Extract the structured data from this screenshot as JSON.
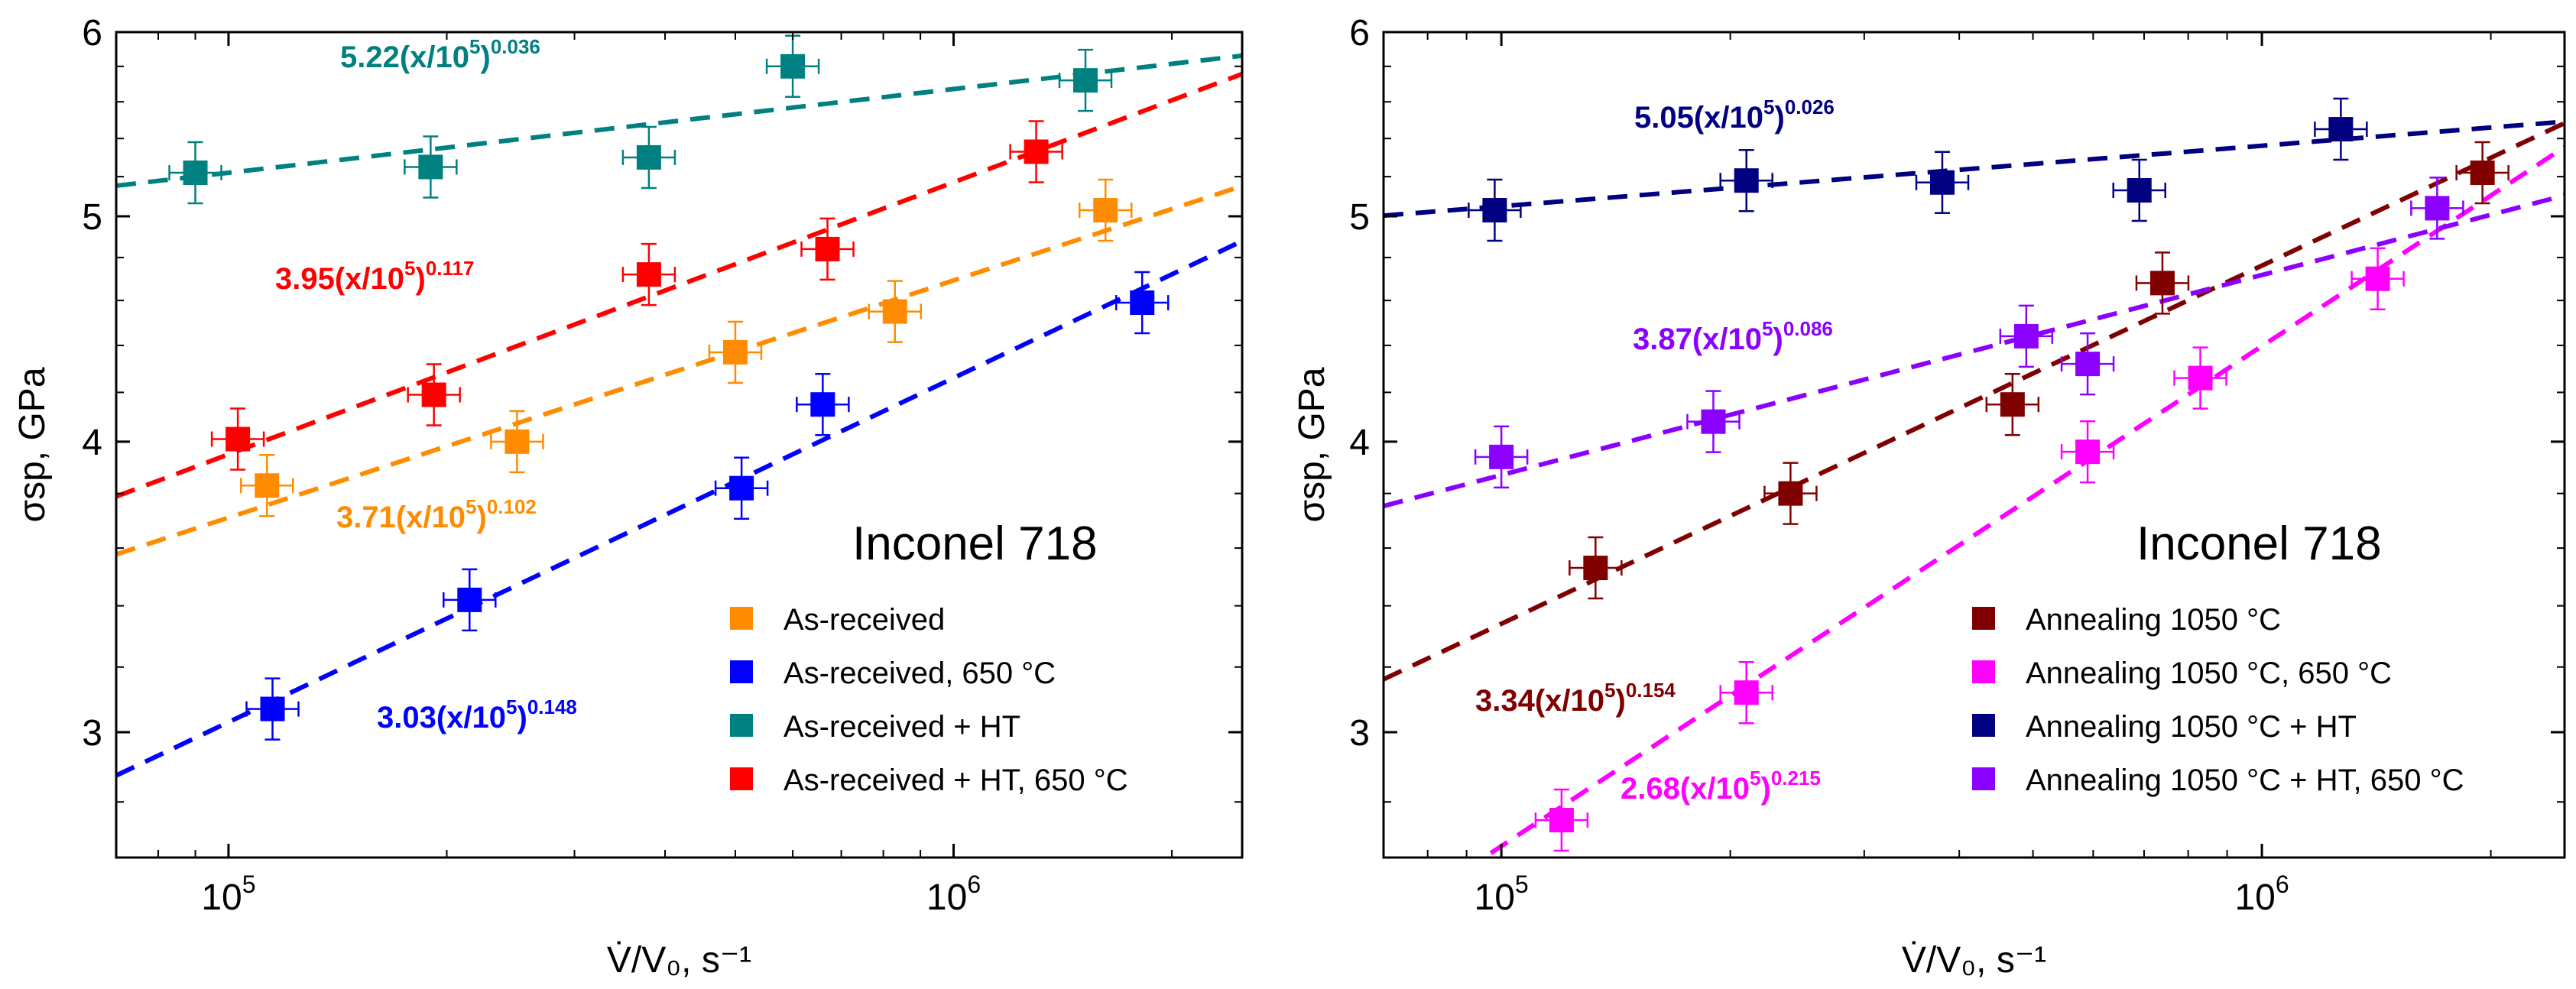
{
  "chart_data": [
    {
      "type": "scatter",
      "title": "Inconel 718",
      "xlabel": "V̇/V₀, s⁻¹",
      "ylabel": "σsp, GPa",
      "xscale": "log",
      "yscale": "log",
      "xlim": [
        70000,
        2500000
      ],
      "ylim": [
        2.65,
        6.0
      ],
      "x_ticks": [
        100000,
        1000000
      ],
      "x_tick_labels": [
        [
          "10",
          "5"
        ],
        [
          "10",
          "6"
        ]
      ],
      "y_ticks": [
        3,
        4,
        5,
        6
      ],
      "y_tick_labels": [
        "3",
        "4",
        "5",
        "6"
      ],
      "legend_position": "bottom-right",
      "series": [
        {
          "name": "As-received",
          "color": "#ff8c00",
          "points": [
            [
              113000,
              3.83
            ],
            [
              250000,
              4.0
            ],
            [
              500000,
              4.37
            ],
            [
              830000,
              4.55
            ],
            [
              1620000,
              5.03
            ]
          ],
          "fit": {
            "a": 3.71,
            "b": 0.102,
            "label": "3.71(x/10",
            "sup1": "5",
            "close": ")",
            "sup2": "0.102"
          }
        },
        {
          "name": "As-received, 650 °C",
          "color": "#0000ff",
          "points": [
            [
              115000,
              3.07
            ],
            [
              215000,
              3.42
            ],
            [
              510000,
              3.82
            ],
            [
              660000,
              4.15
            ],
            [
              1820000,
              4.59
            ]
          ],
          "fit": {
            "a": 3.03,
            "b": 0.148,
            "label": "3.03(x/10",
            "sup1": "5",
            "close": ")",
            "sup2": "0.148"
          }
        },
        {
          "name": "As-received + HT",
          "color": "#008080",
          "points": [
            [
              90000,
              5.22
            ],
            [
              190000,
              5.25
            ],
            [
              380000,
              5.3
            ],
            [
              600000,
              5.8
            ],
            [
              1520000,
              5.72
            ]
          ],
          "fit": {
            "a": 5.22,
            "b": 0.036,
            "label": "5.22(x/10",
            "sup1": "5",
            "close": ")",
            "sup2": "0.036"
          }
        },
        {
          "name": "As-received + HT, 650 °C",
          "color": "#ff0000",
          "points": [
            [
              103000,
              4.01
            ],
            [
              192000,
              4.19
            ],
            [
              380000,
              4.72
            ],
            [
              670000,
              4.84
            ],
            [
              1300000,
              5.33
            ]
          ],
          "fit": {
            "a": 3.95,
            "b": 0.117,
            "label": "3.95(x/10",
            "sup1": "5",
            "close": ")",
            "sup2": "0.117"
          }
        }
      ]
    },
    {
      "type": "scatter",
      "title": "Inconel 718",
      "xlabel": "V̇/V₀, s⁻¹",
      "ylabel": "σsp, GPa",
      "xscale": "log",
      "yscale": "log",
      "xlim": [
        70000,
        2500000
      ],
      "ylim": [
        2.65,
        6.0
      ],
      "x_ticks": [
        100000,
        1000000
      ],
      "x_tick_labels": [
        [
          "10",
          "5"
        ],
        [
          "10",
          "6"
        ]
      ],
      "y_ticks": [
        3,
        4,
        5,
        6
      ],
      "y_tick_labels": [
        "3",
        "4",
        "5",
        "6"
      ],
      "legend_position": "bottom-right",
      "series": [
        {
          "name": "Annealing 1050 °C",
          "color": "#800000",
          "points": [
            [
              133000,
              3.53
            ],
            [
              240000,
              3.8
            ],
            [
              470000,
              4.15
            ],
            [
              740000,
              4.68
            ],
            [
              1950000,
              5.22
            ]
          ],
          "fit": {
            "a": 3.34,
            "b": 0.154,
            "label": "3.34(x/10",
            "sup1": "5",
            "close": ")",
            "sup2": "0.154"
          }
        },
        {
          "name": "Annealing 1050 °C, 650 °C",
          "color": "#ff00ff",
          "points": [
            [
              120000,
              2.75
            ],
            [
              210000,
              3.12
            ],
            [
              590000,
              3.96
            ],
            [
              830000,
              4.26
            ],
            [
              1420000,
              4.7
            ]
          ],
          "fit": {
            "a": 2.68,
            "b": 0.215,
            "label": "2.68(x/10",
            "sup1": "5",
            "close": ")",
            "sup2": "0.215"
          }
        },
        {
          "name": "Annealing 1050 °C + HT",
          "color": "#000080",
          "points": [
            [
              98000,
              5.03
            ],
            [
              210000,
              5.18
            ],
            [
              380000,
              5.17
            ],
            [
              690000,
              5.13
            ],
            [
              1270000,
              5.45
            ]
          ],
          "fit": {
            "a": 5.05,
            "b": 0.026,
            "label": "5.05(x/10",
            "sup1": "5",
            "close": ")",
            "sup2": "0.026"
          }
        },
        {
          "name": "Annealing 1050 °C + HT, 650 °C",
          "color": "#8b00ff",
          "points": [
            [
              100000,
              3.94
            ],
            [
              190000,
              4.08
            ],
            [
              490000,
              4.44
            ],
            [
              590000,
              4.32
            ],
            [
              1700000,
              5.04
            ]
          ],
          "fit": {
            "a": 3.87,
            "b": 0.086,
            "label": "3.87(x/10",
            "sup1": "5",
            "close": ")",
            "sup2": "0.086"
          }
        }
      ]
    }
  ]
}
